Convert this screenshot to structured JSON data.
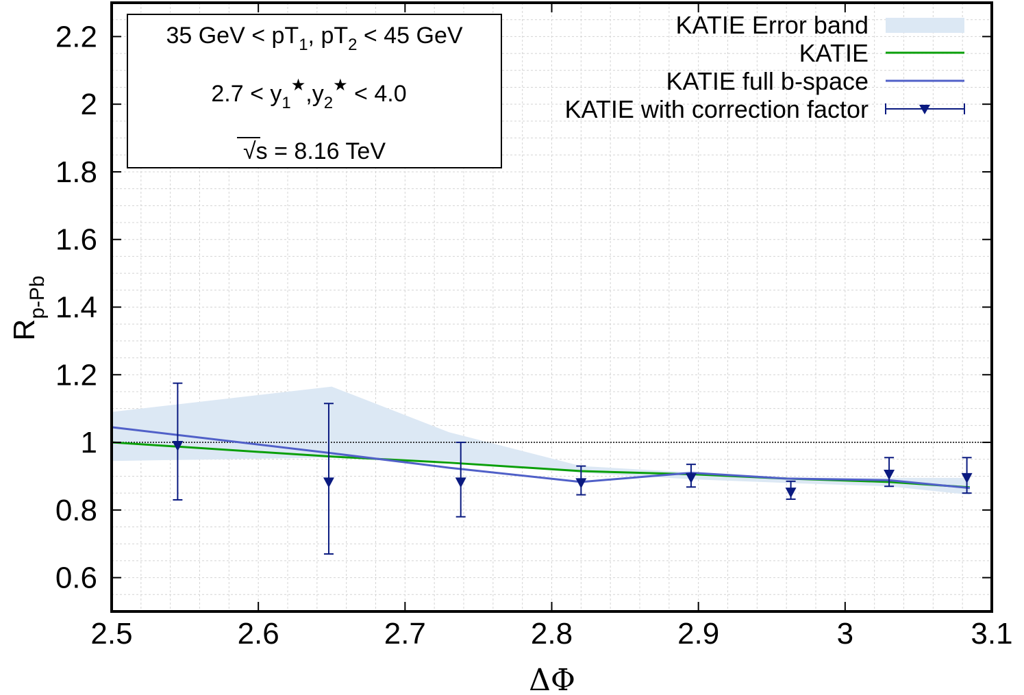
{
  "chart_data": {
    "type": "line",
    "xlabel": "ΔΦ",
    "ylabel": "R",
    "ylabel_sub": "p-Pb",
    "xlim": [
      2.5,
      3.1
    ],
    "ylim": [
      0.5,
      2.3
    ],
    "xticks": [
      2.5,
      2.6,
      2.7,
      2.8,
      2.9,
      3.0,
      3.1
    ],
    "xtick_labels": [
      "2.5",
      "2.6",
      "2.7",
      "2.8",
      "2.9",
      "3",
      "3.1"
    ],
    "yticks": [
      0.6,
      0.8,
      1.0,
      1.2,
      1.4,
      1.6,
      1.8,
      2.0,
      2.2
    ],
    "ytick_labels": [
      "0.6",
      "0.8",
      "1",
      "1.2",
      "1.4",
      "1.6",
      "1.8",
      "2",
      "2.2"
    ],
    "reference_line": 1.0,
    "grid": true,
    "legend_position": "top-right",
    "band": {
      "name": "KATIE Error band",
      "color": "#dce8f4",
      "x": [
        2.5,
        2.65,
        2.73,
        2.82,
        2.9,
        2.96,
        3.03,
        3.085
      ],
      "upper": [
        1.09,
        1.165,
        1.03,
        0.93,
        0.91,
        0.895,
        0.895,
        0.895
      ],
      "lower": [
        0.945,
        0.955,
        0.945,
        0.91,
        0.89,
        0.88,
        0.87,
        0.845
      ]
    },
    "series": [
      {
        "name": "KATIE",
        "color": "#0a9f0a",
        "x": [
          2.5,
          2.65,
          2.73,
          2.82,
          2.9,
          2.96,
          3.03,
          3.085
        ],
        "y": [
          1.0,
          0.958,
          0.94,
          0.915,
          0.905,
          0.893,
          0.883,
          0.867
        ]
      },
      {
        "name": "KATIE full b-space",
        "color": "#5060c8",
        "x": [
          2.5,
          2.65,
          2.73,
          2.82,
          2.895,
          2.96,
          3.03,
          3.085
        ],
        "y": [
          1.045,
          0.968,
          0.925,
          0.883,
          0.91,
          0.893,
          0.888,
          0.865
        ]
      }
    ],
    "points": {
      "name": "KATIE with correction factor",
      "color": "#0a1a80",
      "x": [
        2.545,
        2.648,
        2.738,
        2.82,
        2.895,
        2.963,
        3.03,
        3.083
      ],
      "y": [
        0.99,
        0.882,
        0.882,
        0.88,
        0.895,
        0.852,
        0.905,
        0.895
      ],
      "err_low": [
        0.83,
        0.67,
        0.78,
        0.845,
        0.868,
        0.832,
        0.87,
        0.85
      ],
      "err_high": [
        1.175,
        1.115,
        1.0,
        0.93,
        0.935,
        0.885,
        0.955,
        0.955
      ]
    }
  },
  "legend": {
    "items": [
      {
        "label": "KATIE Error band"
      },
      {
        "label": "KATIE"
      },
      {
        "label": "KATIE full b-space"
      },
      {
        "label": "KATIE with correction factor"
      }
    ]
  },
  "info_box": {
    "pt_prefix": "35 GeV < pT",
    "pt_sub1": "1",
    "pt_mid": ", pT",
    "pt_sub2": "2",
    "pt_suffix": " < 45 GeV",
    "y_prefix": "2.7 < y",
    "y_sub1": "1",
    "y_star1": "★",
    "y_mid": ",y",
    "y_sub2": "2",
    "y_star2": "★",
    "y_suffix": " < 4.0",
    "sqrt_symbol": "√",
    "sqrt_var": "s",
    "energy_suffix": " = 8.16 TeV"
  }
}
